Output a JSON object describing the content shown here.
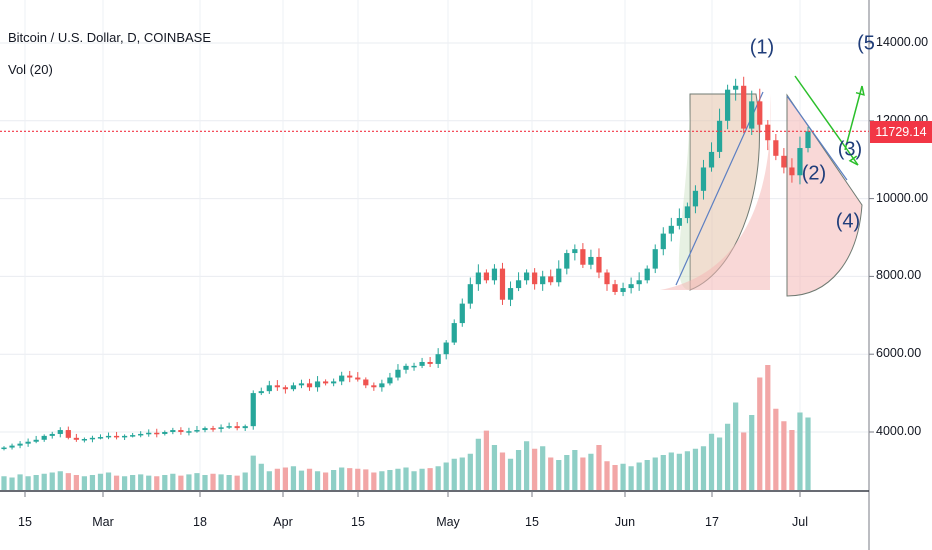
{
  "header": {
    "title": "Bitcoin / U.S. Dollar, D, COINBASE",
    "volume_indicator": "Vol (20)"
  },
  "last_price": "11729.14",
  "colors": {
    "up": "#26a69a",
    "down": "#ef5350",
    "vol_up": "#8fcfc6",
    "vol_down": "#f2a6a6",
    "last_price": "#f23645",
    "wave_label": "#1f3d7a",
    "arrow": "#2bbf2b"
  },
  "chart_data": {
    "type": "candlestick",
    "y_axis": {
      "ticks": [
        "4000.00",
        "6000.00",
        "8000.00",
        "10000.00",
        "12000.00",
        "14000.00"
      ],
      "ylim": [
        2700,
        14800
      ]
    },
    "x_axis": {
      "ticks": [
        "15",
        "Mar",
        "18",
        "Apr",
        "15",
        "May",
        "15",
        "Jun",
        "17",
        "Jul"
      ]
    },
    "close_path": [
      3600,
      3650,
      3700,
      3750,
      3800,
      3900,
      3950,
      4050,
      3850,
      3800,
      3820,
      3850,
      3870,
      3900,
      3880,
      3900,
      3920,
      3950,
      3980,
      3950,
      4000,
      4050,
      4000,
      4020,
      4050,
      4100,
      4080,
      4120,
      4150,
      4100,
      4150,
      5000,
      5050,
      5200,
      5150,
      5100,
      5200,
      5250,
      5150,
      5300,
      5250,
      5300,
      5450,
      5400,
      5350,
      5200,
      5150,
      5250,
      5400,
      5600,
      5700,
      5700,
      5800,
      5750,
      6000,
      6300,
      6800,
      7300,
      7800,
      8100,
      7900,
      8200,
      7400,
      7700,
      7900,
      8100,
      7800,
      8000,
      7850,
      8200,
      8600,
      8700,
      8300,
      8500,
      8100,
      7800,
      7600,
      7700,
      7800,
      7900,
      8200,
      8700,
      9100,
      9300,
      9500,
      9800,
      10200,
      10800,
      11200,
      12000,
      12800,
      12900,
      11800,
      12500,
      11900,
      11500,
      11100,
      10800,
      10600,
      11300,
      11729.14
    ],
    "volume": [
      22,
      20,
      25,
      22,
      24,
      26,
      28,
      30,
      27,
      24,
      22,
      24,
      26,
      28,
      23,
      22,
      24,
      25,
      23,
      22,
      24,
      26,
      23,
      25,
      27,
      24,
      26,
      25,
      24,
      23,
      28,
      55,
      42,
      30,
      34,
      36,
      38,
      31,
      34,
      30,
      28,
      32,
      36,
      35,
      34,
      33,
      28,
      30,
      32,
      34,
      36,
      30,
      34,
      35,
      38,
      44,
      50,
      52,
      58,
      82,
      95,
      72,
      60,
      50,
      64,
      78,
      66,
      70,
      52,
      48,
      56,
      64,
      52,
      58,
      72,
      46,
      40,
      42,
      38,
      44,
      48,
      52,
      56,
      60,
      58,
      62,
      66,
      70,
      90,
      84,
      106,
      140,
      92,
      120,
      180,
      200,
      130,
      110,
      96,
      124,
      116
    ],
    "annotations": {
      "waves": [
        {
          "label": "(1)",
          "kind": "wave"
        },
        {
          "label": "(2)",
          "kind": "wave"
        },
        {
          "label": "(3)",
          "kind": "wave"
        },
        {
          "label": "(4)",
          "kind": "wave"
        },
        {
          "label": "(5",
          "kind": "wave"
        }
      ],
      "last_price_line": true
    }
  }
}
